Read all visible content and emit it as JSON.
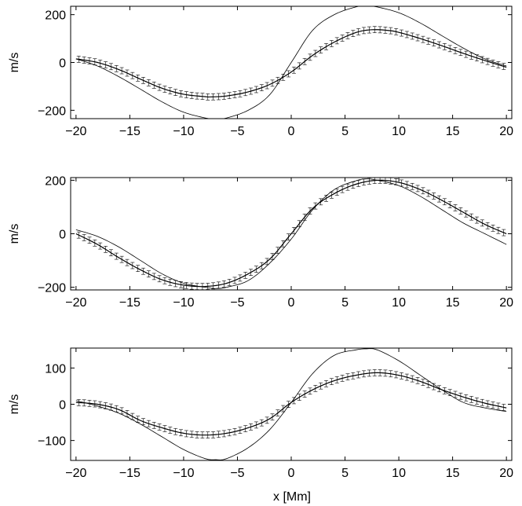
{
  "figure": {
    "xlabel": "x [Mm]"
  },
  "chart_data": [
    {
      "type": "line",
      "ylabel": "m/s",
      "xlim": [
        -20.5,
        20.5
      ],
      "ylim": [
        -235,
        235
      ],
      "xticks": [
        -20,
        -15,
        -10,
        -5,
        0,
        5,
        10,
        15,
        20
      ],
      "yticks": [
        -200,
        0,
        200
      ],
      "grid": false,
      "series": [
        {
          "style": "thin-line",
          "x": [
            -20,
            -18,
            -16,
            -14,
            -12,
            -10,
            -8,
            -7,
            -6,
            -4,
            -2,
            0,
            2,
            4,
            6,
            7,
            8,
            10,
            12,
            14,
            16,
            18,
            20
          ],
          "values": [
            15,
            -15,
            -60,
            -112,
            -165,
            -208,
            -232,
            -237,
            -232,
            -200,
            -135,
            0,
            135,
            200,
            232,
            237,
            232,
            208,
            165,
            112,
            60,
            15,
            -15
          ]
        },
        {
          "style": "line-with-errorbars",
          "x": [
            -20,
            -18,
            -16,
            -14,
            -12,
            -10,
            -8,
            -7.5,
            -6,
            -4,
            -2,
            0,
            2,
            4,
            6,
            7.5,
            9,
            10,
            12,
            14,
            16,
            18,
            20
          ],
          "values": [
            15,
            0,
            -30,
            -70,
            -108,
            -133,
            -143,
            -144,
            -140,
            -123,
            -92,
            -40,
            30,
            85,
            125,
            137,
            134,
            126,
            100,
            70,
            38,
            8,
            -20
          ]
        }
      ]
    },
    {
      "type": "line",
      "ylabel": "m/s",
      "xlim": [
        -20.5,
        20.5
      ],
      "ylim": [
        -210,
        210
      ],
      "xticks": [
        -20,
        -15,
        -10,
        -5,
        0,
        5,
        10,
        15,
        20
      ],
      "yticks": [
        -200,
        0,
        200
      ],
      "grid": false,
      "series": [
        {
          "style": "thin-line",
          "x": [
            -20,
            -18,
            -16,
            -14,
            -12,
            -10,
            -8,
            -7,
            -6,
            -4,
            -2,
            0,
            2,
            4,
            6,
            7,
            8,
            10,
            12,
            14,
            16,
            18,
            20
          ],
          "values": [
            15,
            -10,
            -50,
            -100,
            -150,
            -185,
            -200,
            -205,
            -200,
            -175,
            -110,
            -20,
            90,
            165,
            198,
            205,
            200,
            180,
            140,
            90,
            40,
            0,
            -40
          ]
        },
        {
          "style": "line-with-errorbars",
          "x": [
            -20,
            -18,
            -16,
            -14,
            -12,
            -10,
            -8,
            -6,
            -4,
            -2,
            0,
            2,
            4,
            6,
            8,
            10,
            12,
            14,
            16,
            18,
            20
          ],
          "values": [
            0,
            -40,
            -90,
            -135,
            -172,
            -192,
            -197,
            -185,
            -150,
            -95,
            0,
            95,
            150,
            185,
            200,
            192,
            165,
            125,
            80,
            35,
            0
          ]
        }
      ]
    },
    {
      "type": "line",
      "ylabel": "m/s",
      "xlim": [
        -20.5,
        20.5
      ],
      "ylim": [
        -155,
        155
      ],
      "xticks": [
        -20,
        -15,
        -10,
        -5,
        0,
        5,
        10,
        15,
        20
      ],
      "yticks": [
        -100,
        0,
        100
      ],
      "xlabel": "x [Mm]",
      "grid": false,
      "series": [
        {
          "style": "thin-line",
          "x": [
            -20,
            -18,
            -16,
            -14,
            -12,
            -10,
            -8,
            -7,
            -6,
            -4,
            -2,
            0,
            2,
            4,
            6,
            7,
            8,
            10,
            12,
            14,
            16,
            18,
            20
          ],
          "values": [
            10,
            -5,
            -25,
            -55,
            -90,
            -125,
            -150,
            -153,
            -150,
            -120,
            -70,
            5,
            85,
            135,
            150,
            153,
            150,
            120,
            80,
            40,
            5,
            -10,
            -20
          ]
        },
        {
          "style": "line-with-errorbars",
          "x": [
            -20,
            -18,
            -16,
            -14,
            -12,
            -10,
            -8,
            -6,
            -4,
            -2,
            0,
            2,
            4,
            6,
            8,
            10,
            12,
            14,
            16,
            18,
            20
          ],
          "values": [
            5,
            0,
            -15,
            -45,
            -65,
            -80,
            -85,
            -80,
            -65,
            -40,
            5,
            40,
            65,
            80,
            87,
            80,
            63,
            40,
            20,
            3,
            -10
          ]
        }
      ]
    }
  ]
}
